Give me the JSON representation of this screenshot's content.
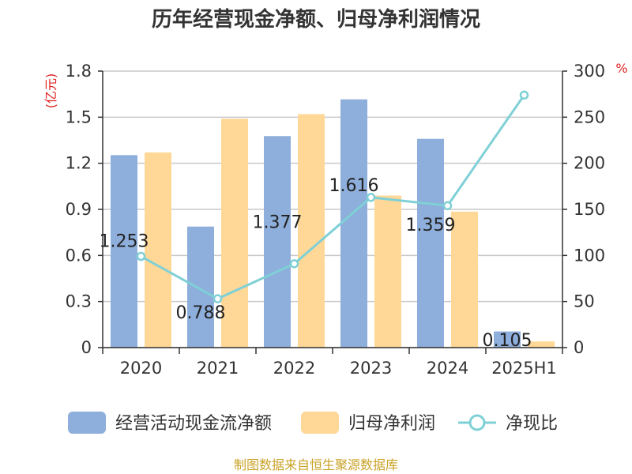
{
  "chart_data": {
    "type": "bar",
    "title": "历年经营现金净额、归母净利润情况",
    "categories": [
      "2020",
      "2021",
      "2022",
      "2023",
      "2024",
      "2025H1"
    ],
    "y_left": {
      "unit": "(亿元)",
      "ylim": [
        0,
        1.8
      ],
      "ticks": [
        "0",
        "0.3",
        "0.6",
        "0.9",
        "1.2",
        "1.5",
        "1.8"
      ]
    },
    "y_right": {
      "unit": "%",
      "ylim": [
        0,
        300
      ],
      "ticks": [
        "0",
        "50",
        "100",
        "150",
        "200",
        "250",
        "300"
      ]
    },
    "series": [
      {
        "name": "经营活动现金流净额",
        "kind": "bar",
        "axis": "left",
        "color": "#8eaedb",
        "values": [
          1.253,
          0.788,
          1.377,
          1.616,
          1.359,
          0.105
        ],
        "labels": [
          "1.253",
          "0.788",
          "1.377",
          "1.616",
          "1.359",
          "0.105"
        ]
      },
      {
        "name": "归母净利润",
        "kind": "bar",
        "axis": "left",
        "color": "#ffd897",
        "values": [
          1.27,
          1.49,
          1.52,
          0.99,
          0.885,
          0.04
        ]
      },
      {
        "name": "净现比",
        "kind": "line",
        "axis": "right",
        "color": "#7fd0d6",
        "values": [
          99,
          53,
          91,
          163,
          154,
          274
        ]
      }
    ],
    "grid": true,
    "legend": "bottom"
  },
  "source": "制图数据来自恒生聚源数据库"
}
